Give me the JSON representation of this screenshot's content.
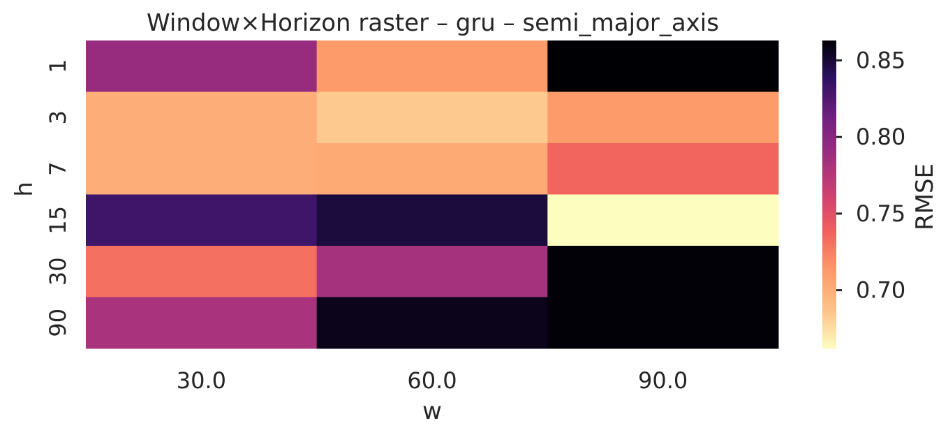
{
  "chart_data": {
    "type": "heatmap",
    "title": "Window×Horizon raster – gru – semi_major_axis",
    "xlabel": "w",
    "ylabel": "h",
    "x_categories": [
      "30.0",
      "60.0",
      "90.0"
    ],
    "y_categories": [
      "1",
      "3",
      "7",
      "15",
      "30",
      "90"
    ],
    "values": [
      [
        0.791,
        0.712,
        0.863
      ],
      [
        0.701,
        0.684,
        0.712
      ],
      [
        0.701,
        0.703,
        0.736
      ],
      [
        0.832,
        0.848,
        0.662
      ],
      [
        0.731,
        0.783,
        0.862
      ],
      [
        0.781,
        0.857,
        0.862
      ]
    ],
    "colorbar": {
      "label": "RMSE",
      "min": 0.662,
      "max": 0.863,
      "ticks": [
        "0.70",
        "0.75",
        "0.80",
        "0.85"
      ],
      "colormap": "magma_r"
    }
  }
}
